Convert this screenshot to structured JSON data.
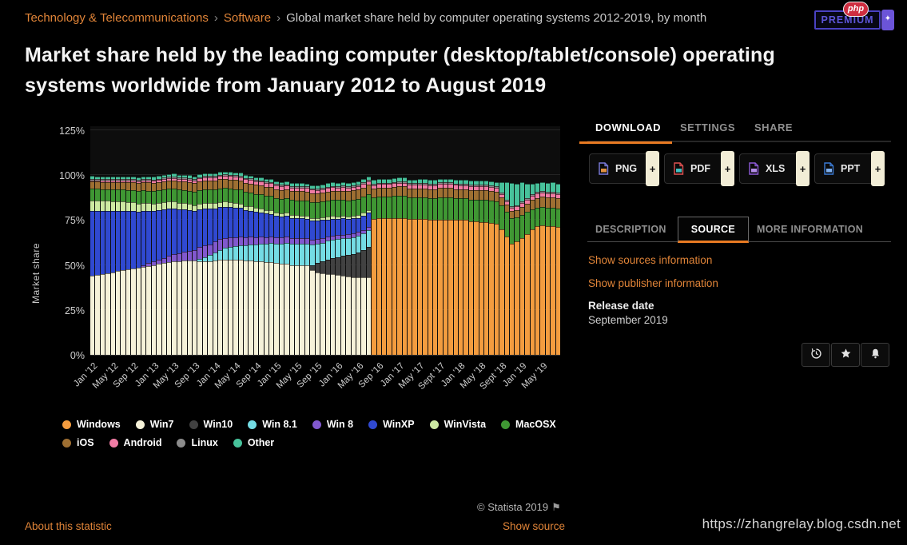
{
  "breadcrumb": {
    "separator": "›",
    "items": [
      {
        "label": "Technology & Telecommunications",
        "link": true
      },
      {
        "label": "Software",
        "link": true
      },
      {
        "label": "Global market share held by computer operating systems 2012-2019, by month",
        "link": false
      }
    ]
  },
  "title": "Market share held by the leading computer (desktop/tablet/console) operating systems worldwide from January 2012 to August 2019",
  "premium": {
    "logo_text": "php",
    "badge_label": "PREMIUM",
    "plus_glyph": "✦"
  },
  "panel": {
    "tabs": [
      "DOWNLOAD",
      "SETTINGS",
      "SHARE"
    ],
    "active_tab": "DOWNLOAD",
    "plus_label": "+",
    "downloads": [
      {
        "label": "PNG",
        "icon": "png-file-icon",
        "color": "#7b7bd9",
        "accent": "#e09040"
      },
      {
        "label": "PDF",
        "icon": "pdf-file-icon",
        "color": "#e05252",
        "accent": "#3fc0c0"
      },
      {
        "label": "XLS",
        "icon": "xls-file-icon",
        "color": "#8e5bd8",
        "accent": "#b48de8"
      },
      {
        "label": "PPT",
        "icon": "ppt-file-icon",
        "color": "#3a7bd5",
        "accent": "#7fb0ef"
      }
    ],
    "info_tabs": [
      "DESCRIPTION",
      "SOURCE",
      "MORE INFORMATION"
    ],
    "active_info_tab": "SOURCE",
    "links": [
      "Show sources information",
      "Show publisher information"
    ],
    "release_date_label": "Release date",
    "release_date_value": "September 2019",
    "action_icons": [
      "history-icon",
      "star-icon",
      "bell-icon"
    ]
  },
  "footer": {
    "copyright": "© Statista 2019",
    "flag_icon": "⚑",
    "about_link": "About this statistic",
    "show_source_link": "Show source"
  },
  "watermark": "https://zhangrelay.blog.csdn.net",
  "chart_data": {
    "type": "bar",
    "stacked": true,
    "ylabel": "Market share",
    "ylim": [
      0,
      125
    ],
    "y_ticks": [
      "0%",
      "25%",
      "50%",
      "75%",
      "100%",
      "125%"
    ],
    "x_tick_labels": [
      "Jan '12",
      "May '12",
      "Sep '12",
      "Jan '13",
      "May '13",
      "Sep '13",
      "Jan '14",
      "May '14",
      "Sep '14",
      "Jan '15",
      "May '15",
      "Sep '15",
      "Jan '16",
      "May '16",
      "Sep '16",
      "Jan '17",
      "May '17",
      "Sept '17",
      "Jan '18",
      "May '18",
      "Sept '18",
      "Jan '19",
      "May '19"
    ],
    "x_tick_every_n_months": 4,
    "n_months": 92,
    "x_range": "Jan 2012 - Aug 2019 (monthly)",
    "legend_rows": [
      8,
      4
    ],
    "series": [
      {
        "name": "Windows",
        "color": "#F39C3F",
        "values": [
          0,
          0,
          0,
          0,
          0,
          0,
          0,
          0,
          0,
          0,
          0,
          0,
          0,
          0,
          0,
          0,
          0,
          0,
          0,
          0,
          0,
          0,
          0,
          0,
          0,
          0,
          0,
          0,
          0,
          0,
          0,
          0,
          0,
          0,
          0,
          0,
          0,
          0,
          0,
          0,
          0,
          0,
          0,
          0,
          0,
          0,
          0,
          0,
          0,
          0,
          0,
          0,
          0,
          0,
          0,
          75.5,
          76,
          76,
          76,
          76,
          76,
          76,
          75.5,
          75.5,
          75.5,
          75.5,
          75,
          75,
          75,
          75,
          75,
          75,
          75,
          75,
          74.5,
          74.5,
          74,
          74,
          73.5,
          73,
          70,
          66,
          62,
          63,
          65,
          67,
          70,
          71.5,
          72,
          71.5,
          71.5,
          71
        ]
      },
      {
        "name": "Win7",
        "color": "#F6F2D9",
        "values": [
          44,
          44.5,
          45,
          45.5,
          46,
          46.5,
          47,
          47.5,
          48,
          48.5,
          49,
          49.5,
          50,
          50.5,
          51,
          51.5,
          52,
          52,
          52.5,
          52.5,
          52.5,
          52,
          52,
          52,
          52.5,
          53,
          53,
          53,
          53,
          53,
          52.5,
          52.5,
          52,
          52,
          51.5,
          51.5,
          51,
          50.5,
          50.5,
          50,
          50,
          50,
          50,
          47,
          46,
          45.5,
          45,
          45,
          44.5,
          44,
          43.5,
          43,
          43,
          43,
          43,
          0,
          0,
          0,
          0,
          0,
          0,
          0,
          0,
          0,
          0,
          0,
          0,
          0,
          0,
          0,
          0,
          0,
          0,
          0,
          0,
          0,
          0,
          0,
          0,
          0,
          0,
          0,
          0,
          0,
          0,
          0,
          0,
          0,
          0,
          0,
          0,
          0
        ]
      },
      {
        "name": "Win10",
        "color": "#414141",
        "values": [
          0,
          0,
          0,
          0,
          0,
          0,
          0,
          0,
          0,
          0,
          0,
          0,
          0,
          0,
          0,
          0,
          0,
          0,
          0,
          0,
          0,
          0,
          0,
          0,
          0,
          0,
          0,
          0,
          0,
          0,
          0,
          0,
          0,
          0,
          0,
          0,
          0,
          0,
          0,
          0,
          0,
          0,
          0,
          3,
          5,
          6.5,
          8,
          9,
          10,
          11,
          12,
          13,
          14,
          15.5,
          17,
          0,
          0,
          0,
          0,
          0,
          0,
          0,
          0,
          0,
          0,
          0,
          0,
          0,
          0,
          0,
          0,
          0,
          0,
          0,
          0,
          0,
          0,
          0,
          0,
          0,
          0,
          0,
          0,
          0,
          0,
          0,
          0,
          0,
          0,
          0,
          0,
          0
        ]
      },
      {
        "name": "Win 8.1",
        "color": "#74DCE4",
        "values": [
          0,
          0,
          0,
          0,
          0,
          0,
          0,
          0,
          0,
          0,
          0,
          0,
          0,
          0,
          0,
          0,
          0,
          0,
          0,
          0,
          0,
          1.5,
          2.5,
          3.5,
          4.5,
          5.5,
          6.5,
          7,
          7.5,
          8,
          8.5,
          9,
          9.5,
          10,
          10.5,
          11,
          11,
          11.5,
          12,
          12,
          12,
          12,
          12,
          11.5,
          11,
          10.5,
          10.5,
          10,
          10,
          9.8,
          9.6,
          9.5,
          9.4,
          9.3,
          9.2,
          0,
          0,
          0,
          0,
          0,
          0,
          0,
          0,
          0,
          0,
          0,
          0,
          0,
          0,
          0,
          0,
          0,
          0,
          0,
          0,
          0,
          0,
          0,
          0,
          0,
          0,
          0,
          0,
          0,
          0,
          0,
          0,
          0,
          0,
          0,
          0,
          0
        ]
      },
      {
        "name": "Win 8",
        "color": "#8158CE",
        "values": [
          0,
          0,
          0,
          0,
          0,
          0,
          0,
          0,
          0,
          0,
          1,
          1.5,
          2,
          2.5,
          3,
          3.5,
          4,
          4.5,
          5,
          5.5,
          6,
          6.5,
          6.5,
          6,
          6,
          5.8,
          5.5,
          5.3,
          5,
          4.8,
          4.5,
          4.3,
          4,
          3.8,
          3.6,
          3.5,
          3.4,
          3.3,
          3.2,
          3.1,
          3,
          2.9,
          2.8,
          2.7,
          2.6,
          2.5,
          2.4,
          2.3,
          2.2,
          2.1,
          2,
          2,
          1.9,
          1.8,
          1.8,
          0,
          0,
          0,
          0,
          0,
          0,
          0,
          0,
          0,
          0,
          0,
          0,
          0,
          0,
          0,
          0,
          0,
          0,
          0,
          0,
          0,
          0,
          0,
          0,
          0,
          0,
          0,
          0,
          0,
          0,
          0,
          0,
          0,
          0,
          0,
          0,
          0
        ]
      },
      {
        "name": "WinXP",
        "color": "#3049D1",
        "values": [
          36,
          35.5,
          35,
          34.5,
          34,
          33.5,
          33,
          32.5,
          32,
          31,
          30,
          29,
          28,
          27.5,
          27,
          26.5,
          25.5,
          24.5,
          23.5,
          22.5,
          21.5,
          21,
          20.5,
          20,
          18.5,
          18,
          17.5,
          17,
          16.5,
          16,
          15,
          14.5,
          14,
          13.5,
          13,
          12.5,
          12,
          11.5,
          11.5,
          11,
          11,
          11,
          11,
          10.5,
          10,
          10,
          9.5,
          9.5,
          9,
          9,
          8.5,
          8.5,
          8,
          8,
          8,
          0,
          0,
          0,
          0,
          0,
          0,
          0,
          0,
          0,
          0,
          0,
          0,
          0,
          0,
          0,
          0,
          0,
          0,
          0,
          0,
          0,
          0,
          0,
          0,
          0,
          0,
          0,
          0,
          0,
          0,
          0,
          0,
          0,
          0,
          0,
          0,
          0
        ]
      },
      {
        "name": "WinVista",
        "color": "#CDE9A2",
        "values": [
          6,
          5.9,
          5.8,
          5.7,
          5.6,
          5.5,
          5.4,
          5.2,
          5,
          4.8,
          4.6,
          4.4,
          4.2,
          4.1,
          4,
          3.9,
          3.8,
          3.7,
          3.6,
          3.5,
          3.4,
          3.3,
          3.2,
          3.1,
          3,
          2.9,
          2.8,
          2.7,
          2.6,
          2.5,
          2.4,
          2.3,
          2.2,
          2.1,
          2,
          2,
          1.9,
          1.9,
          1.8,
          1.8,
          1.7,
          1.7,
          1.6,
          1.6,
          1.5,
          1.5,
          1.5,
          1.5,
          1.5,
          1.5,
          1.4,
          1.4,
          1.4,
          1.4,
          1.4,
          0,
          0,
          0,
          0,
          0,
          0,
          0,
          0,
          0,
          0,
          0,
          0,
          0,
          0,
          0,
          0,
          0,
          0,
          0,
          0,
          0,
          0,
          0,
          0,
          0,
          0,
          0,
          0,
          0,
          0,
          0,
          0,
          0,
          0,
          0,
          0,
          0
        ]
      },
      {
        "name": "MacOSX",
        "color": "#3F9733",
        "values": [
          6.5,
          6.5,
          6.5,
          6.5,
          6.5,
          6.5,
          6.6,
          6.6,
          6.7,
          6.8,
          6.9,
          7,
          7,
          7,
          7.1,
          7.1,
          7.2,
          7.2,
          7.2,
          7.3,
          7.3,
          7.4,
          7.4,
          7.5,
          7.5,
          7.5,
          7.6,
          7.6,
          7.7,
          7.7,
          7.8,
          7.8,
          7.9,
          8,
          8,
          8,
          8,
          8.1,
          8.2,
          8.3,
          8.4,
          8.5,
          8.5,
          8.6,
          8.7,
          8.8,
          8.9,
          9,
          9,
          9,
          9.1,
          9.1,
          9.2,
          9.2,
          9.2,
          12,
          12,
          12,
          12,
          12.5,
          12.5,
          12.5,
          12,
          12,
          12,
          12,
          12,
          12,
          12.5,
          12.5,
          12.5,
          12,
          12,
          12,
          12,
          12,
          12.5,
          12.5,
          12.5,
          12.5,
          13,
          13.5,
          14,
          13.5,
          13,
          12.5,
          11,
          10.5,
          10.5,
          10.5,
          10.5,
          10.5
        ]
      },
      {
        "name": "iOS",
        "color": "#9E6F32",
        "values": [
          4,
          4,
          4,
          4.1,
          4.1,
          4.2,
          4.2,
          4.3,
          4.3,
          4.4,
          4.4,
          4.5,
          4.5,
          4.5,
          4.6,
          4.6,
          4.7,
          4.7,
          4.8,
          4.8,
          4.9,
          4.9,
          5,
          5,
          5,
          5,
          5,
          5,
          5,
          5,
          5,
          5,
          5,
          5,
          5,
          5,
          5,
          5,
          5,
          5,
          5,
          5,
          5,
          5,
          5,
          5,
          5,
          5,
          5,
          5,
          5,
          5,
          5,
          5,
          5,
          5,
          5,
          5,
          5,
          5,
          5.2,
          5.2,
          5.2,
          5.2,
          5.2,
          5.2,
          5.3,
          5.3,
          5.3,
          5.3,
          5.3,
          5.3,
          5.2,
          5.2,
          5.2,
          5.2,
          5.2,
          5.2,
          5.2,
          5.2,
          4.5,
          4,
          4,
          4.2,
          4.5,
          4.8,
          5.2,
          5.4,
          5.5,
          5.5,
          5.6,
          5.6
        ]
      },
      {
        "name": "Android",
        "color": "#F07CA4",
        "values": [
          0.7,
          0.7,
          0.8,
          0.8,
          0.8,
          0.9,
          0.9,
          0.9,
          1,
          1,
          1,
          1.1,
          1.1,
          1.2,
          1.2,
          1.3,
          1.3,
          1.4,
          1.4,
          1.5,
          1.5,
          1.6,
          1.6,
          1.7,
          1.7,
          1.8,
          1.8,
          1.9,
          1.9,
          2,
          2,
          2,
          2,
          2,
          2,
          2,
          2,
          2,
          2,
          2,
          2,
          2,
          2,
          2,
          2,
          2,
          2,
          2,
          2,
          2,
          2,
          2,
          2,
          2,
          2,
          2,
          2,
          2,
          2,
          2,
          2.1,
          2.1,
          2.1,
          2.1,
          2.2,
          2.2,
          2.2,
          2.2,
          2.3,
          2.3,
          2.3,
          2.3,
          2.3,
          2.3,
          2.3,
          2.3,
          2.3,
          2.3,
          2.3,
          2.3,
          2,
          1.8,
          1.8,
          1.9,
          2,
          2.2,
          2.4,
          2.5,
          2.5,
          2.5,
          2.5,
          2.5
        ]
      },
      {
        "name": "Linux",
        "color": "#8C8C8C",
        "values": [
          0.8,
          0.8,
          0.8,
          0.8,
          0.8,
          0.8,
          0.8,
          0.8,
          0.8,
          0.8,
          0.8,
          0.8,
          0.8,
          0.8,
          0.8,
          0.8,
          0.8,
          0.8,
          0.8,
          0.8,
          0.8,
          0.8,
          0.8,
          0.8,
          0.8,
          0.8,
          0.8,
          0.8,
          0.8,
          0.8,
          0.8,
          0.8,
          0.8,
          0.8,
          0.8,
          0.8,
          0.8,
          0.8,
          0.8,
          0.8,
          0.8,
          0.8,
          0.8,
          0.8,
          0.8,
          0.8,
          0.8,
          0.8,
          0.8,
          0.8,
          0.8,
          0.8,
          0.8,
          0.8,
          0.8,
          0.8,
          0.8,
          0.8,
          0.8,
          0.8,
          0.8,
          0.8,
          0.8,
          0.8,
          0.8,
          0.8,
          0.8,
          0.8,
          0.8,
          0.8,
          0.8,
          0.8,
          0.8,
          0.8,
          0.8,
          0.8,
          0.8,
          0.8,
          0.8,
          0.8,
          0.8,
          0.8,
          0.8,
          0.8,
          0.8,
          0.8,
          0.8,
          0.8,
          0.8,
          0.8,
          0.8,
          0.8
        ]
      },
      {
        "name": "Other",
        "color": "#47C29B",
        "values": [
          1.5,
          1.5,
          1.5,
          1.5,
          1.5,
          1.5,
          1.5,
          1.5,
          1.5,
          1.5,
          1.5,
          1.5,
          1.5,
          1.5,
          1.5,
          1.5,
          1.5,
          1.5,
          1.5,
          1.5,
          1.5,
          1.5,
          1.5,
          1.5,
          1.5,
          1.5,
          1.5,
          1.5,
          1.5,
          1.5,
          1.5,
          1.5,
          1.5,
          1.5,
          1.5,
          1.5,
          1.6,
          1.6,
          1.6,
          1.6,
          1.6,
          1.6,
          1.6,
          1.8,
          1.8,
          1.9,
          2,
          2,
          1.8,
          1.8,
          1.8,
          1.8,
          1.8,
          1.8,
          1.8,
          2,
          2,
          2,
          2,
          2,
          2,
          2,
          2,
          2,
          2,
          2,
          2,
          2,
          2,
          2,
          2,
          2,
          2,
          2,
          2,
          2,
          2,
          2,
          2.2,
          2.5,
          6,
          10,
          13,
          12,
          11,
          8,
          6,
          5,
          5,
          5,
          5,
          5
        ]
      }
    ]
  }
}
